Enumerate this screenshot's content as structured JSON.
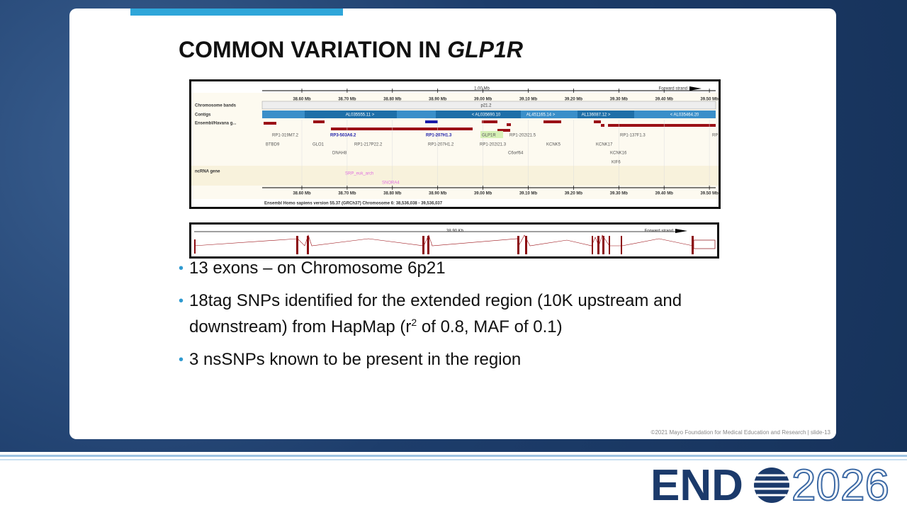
{
  "title": {
    "text": "COMMON VARIATION IN ",
    "italic": "GLP1R"
  },
  "genome_browser": {
    "scale_label": "1.00 Mb",
    "strand": "Forward strand",
    "ticks": [
      "38.60 Mb",
      "38.70 Mb",
      "38.80 Mb",
      "38.90 Mb",
      "39.00 Mb",
      "39.10 Mb",
      "39.20 Mb",
      "39.30 Mb",
      "39.40 Mb",
      "39.50 Mb"
    ],
    "tracks": [
      "Chromosome bands",
      "Contigs",
      "Ensembl/Havana g...",
      "ncRNA gene"
    ],
    "band": "p21.2",
    "contigs": [
      "AL035555.11 >",
      "< AL035690.10",
      "AL451165.14 >",
      "AL136087.12 >",
      "< AL035464.20"
    ],
    "genes": [
      "RP1-319M7.2",
      "RP3-503A6.2",
      "RP1-207H1.3",
      "GLP1R",
      "RP1-202I21.5",
      "RP1-137F1.3",
      "RP",
      "BTBD9",
      "GLO1",
      "RP1-217P22.2",
      "RP1-207H1.2",
      "RP1-202I21.3",
      "KCNK5",
      "KCNK17",
      "DNAH8",
      "C6orf64",
      "KCNK16",
      "KIF6"
    ],
    "ncrna": [
      "SRP_euk_arch",
      "SNORA4"
    ],
    "footer": "Ensembl Homo sapiens version 55.37 (GRCh37) Chromosome 6: 38,536,038 - 39,536,037"
  },
  "transcript": {
    "scale_label": "38.90 Kb",
    "strand": "Forward strand"
  },
  "bullets": [
    {
      "parts": [
        "13 exons – on Chromosome 6p21"
      ]
    },
    {
      "parts": [
        "18tag SNPs identified for the extended region (10K upstream and downstream) from HapMap (r",
        "2",
        " of 0.8, MAF of 0.1)"
      ]
    },
    {
      "parts": [
        "3 nsSNPs known to be present in the region"
      ]
    }
  ],
  "footer": "©2021 Mayo Foundation for Medical Education and Research  |  slide-13",
  "logo": {
    "left": "END",
    "right": "2026"
  }
}
